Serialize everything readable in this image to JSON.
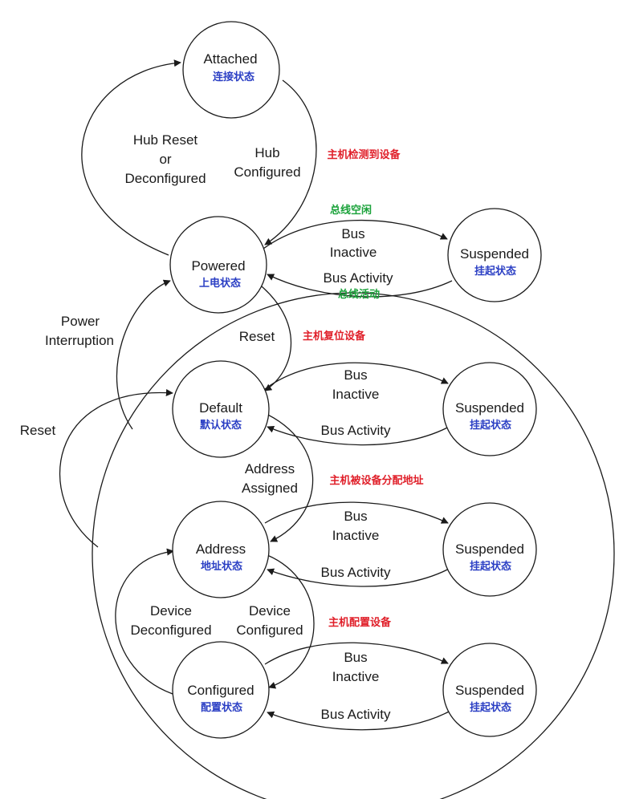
{
  "colors": {
    "state_zh": "#2b3fc4",
    "host_action": "#e0202a",
    "bus_status": "#1aa23a",
    "line": "#1a1a1a"
  },
  "states": {
    "attached": {
      "en": "Attached",
      "zh": "连接状态"
    },
    "powered": {
      "en": "Powered",
      "zh": "上电状态"
    },
    "default": {
      "en": "Default",
      "zh": "默认状态"
    },
    "address": {
      "en": "Address",
      "zh": "地址状态"
    },
    "configured": {
      "en": "Configured",
      "zh": "配置状态"
    },
    "suspended_1": {
      "en": "Suspended",
      "zh": "挂起状态"
    },
    "suspended_2": {
      "en": "Suspended",
      "zh": "挂起状态"
    },
    "suspended_3": {
      "en": "Suspended",
      "zh": "挂起状态"
    },
    "suspended_4": {
      "en": "Suspended",
      "zh": "挂起状态"
    }
  },
  "transitions": {
    "hub_reset": [
      "Hub Reset",
      "or",
      "Deconfigured"
    ],
    "hub_configured": [
      "Hub",
      "Configured"
    ],
    "power_interruption": [
      "Power",
      "Interruption"
    ],
    "reset_outer": "Reset",
    "reset_inner": "Reset",
    "address_assigned": [
      "Address",
      "Assigned"
    ],
    "device_deconfigured": [
      "Device",
      "Deconfigured"
    ],
    "device_configured": [
      "Device",
      "Configured"
    ],
    "bus_inactive": [
      "Bus",
      "Inactive"
    ],
    "bus_activity": "Bus Activity"
  },
  "annotations": {
    "host_detect": "主机检测到设备",
    "host_reset": "主机复位设备",
    "host_assign_address": "主机被设备分配地址",
    "host_configure": "主机配置设备",
    "bus_idle": "总线空闲",
    "bus_active": "总线活动"
  }
}
